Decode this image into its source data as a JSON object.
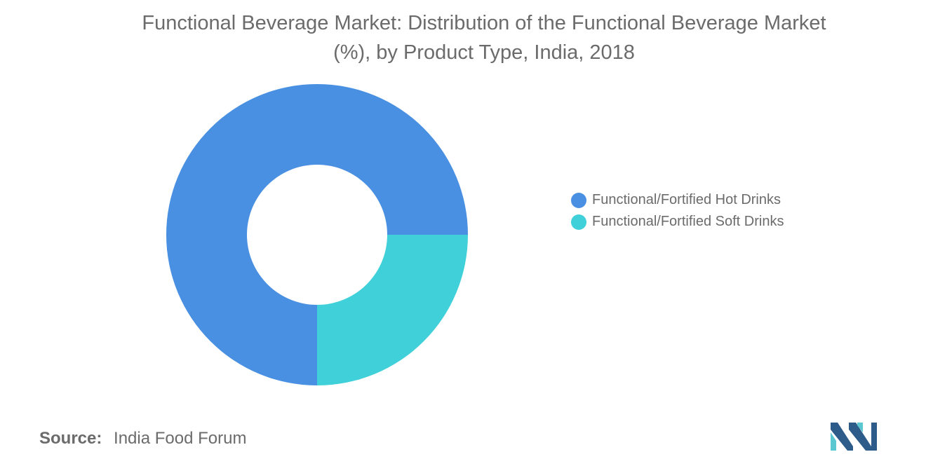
{
  "title_line1": "Functional Beverage Market: Distribution of the Functional Beverage Market",
  "title_line2": "(%), by Product Type, India, 2018",
  "source": {
    "label": "Source:",
    "text": "India Food Forum"
  },
  "colors": {
    "hot": "#4a90e2",
    "soft": "#3fd0d9",
    "logo_dark": "#2d5b8a",
    "logo_light": "#5bc7d1"
  },
  "chart_data": {
    "type": "pie",
    "variant": "donut",
    "title": "Functional Beverage Market: Distribution of the Functional Beverage Market (%), by Product Type, India, 2018",
    "slices": [
      {
        "label": "Functional/Fortified Hot Drinks",
        "value": 75,
        "color": "#4a90e2"
      },
      {
        "label": "Functional/Fortified Soft Drinks",
        "value": 25,
        "color": "#3fd0d9"
      }
    ],
    "start_position": "3 o'clock",
    "direction": "counter-clockwise",
    "legend_position": "right"
  }
}
